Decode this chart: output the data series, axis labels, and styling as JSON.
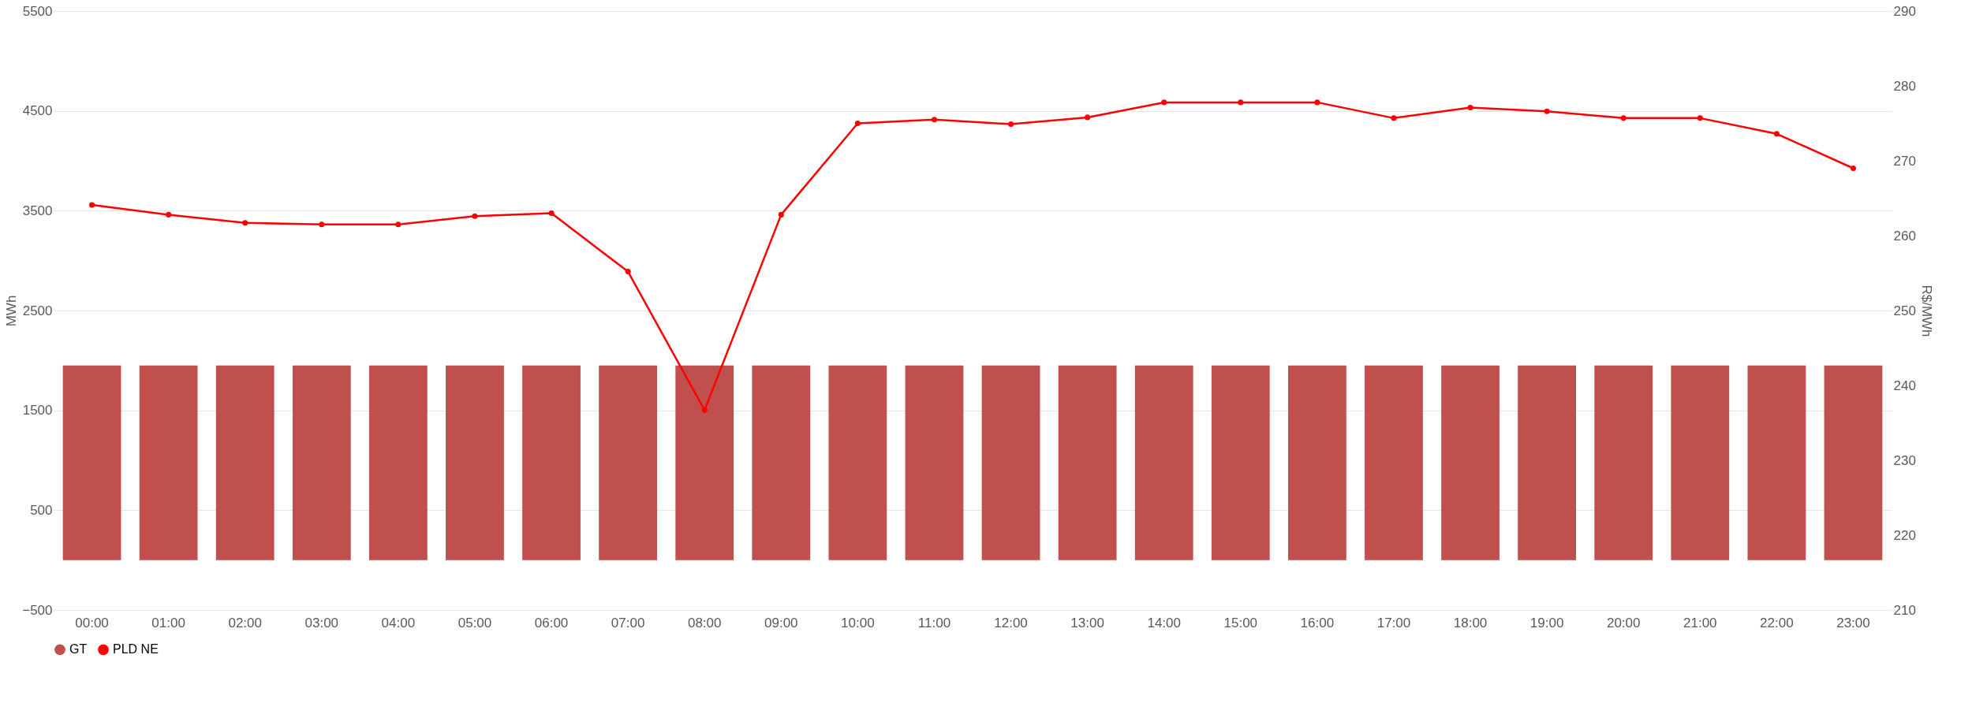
{
  "chart_data": {
    "type": "bar",
    "categories": [
      "00:00",
      "01:00",
      "02:00",
      "03:00",
      "04:00",
      "05:00",
      "06:00",
      "07:00",
      "08:00",
      "09:00",
      "10:00",
      "11:00",
      "12:00",
      "13:00",
      "14:00",
      "15:00",
      "16:00",
      "17:00",
      "18:00",
      "19:00",
      "20:00",
      "21:00",
      "22:00",
      "23:00"
    ],
    "ylabel": "MWh",
    "y2label": "R$/MWh",
    "ylim": [
      -500,
      5500
    ],
    "yticks": [
      -500,
      500,
      1500,
      2500,
      3500,
      4500,
      5500
    ],
    "y2lim": [
      210,
      290
    ],
    "y2ticks": [
      210,
      220,
      230,
      240,
      250,
      260,
      270,
      280,
      290
    ],
    "grid": "y",
    "legend": "bottom",
    "marker": "circle",
    "series": [
      {
        "name": "GT",
        "color": "#c0504d",
        "values": [
          1950,
          1950,
          1950,
          1950,
          1950,
          1950,
          1950,
          1950,
          1950,
          1950,
          1950,
          1950,
          1950,
          1950,
          1950,
          1950,
          1950,
          1950,
          1950,
          1950,
          1950,
          1950,
          1950,
          1950
        ]
      },
      {
        "name": "PLD  NE",
        "type": "line",
        "axis": "y2",
        "color": "#ff0000",
        "values": [
          264.1,
          262.8,
          261.7,
          261.5,
          261.5,
          262.6,
          263.0,
          255.2,
          236.7,
          262.8,
          275.0,
          275.5,
          274.9,
          275.8,
          277.8,
          277.8,
          277.8,
          275.7,
          277.1,
          276.6,
          275.7,
          275.7,
          273.6,
          269.0
        ]
      }
    ]
  }
}
